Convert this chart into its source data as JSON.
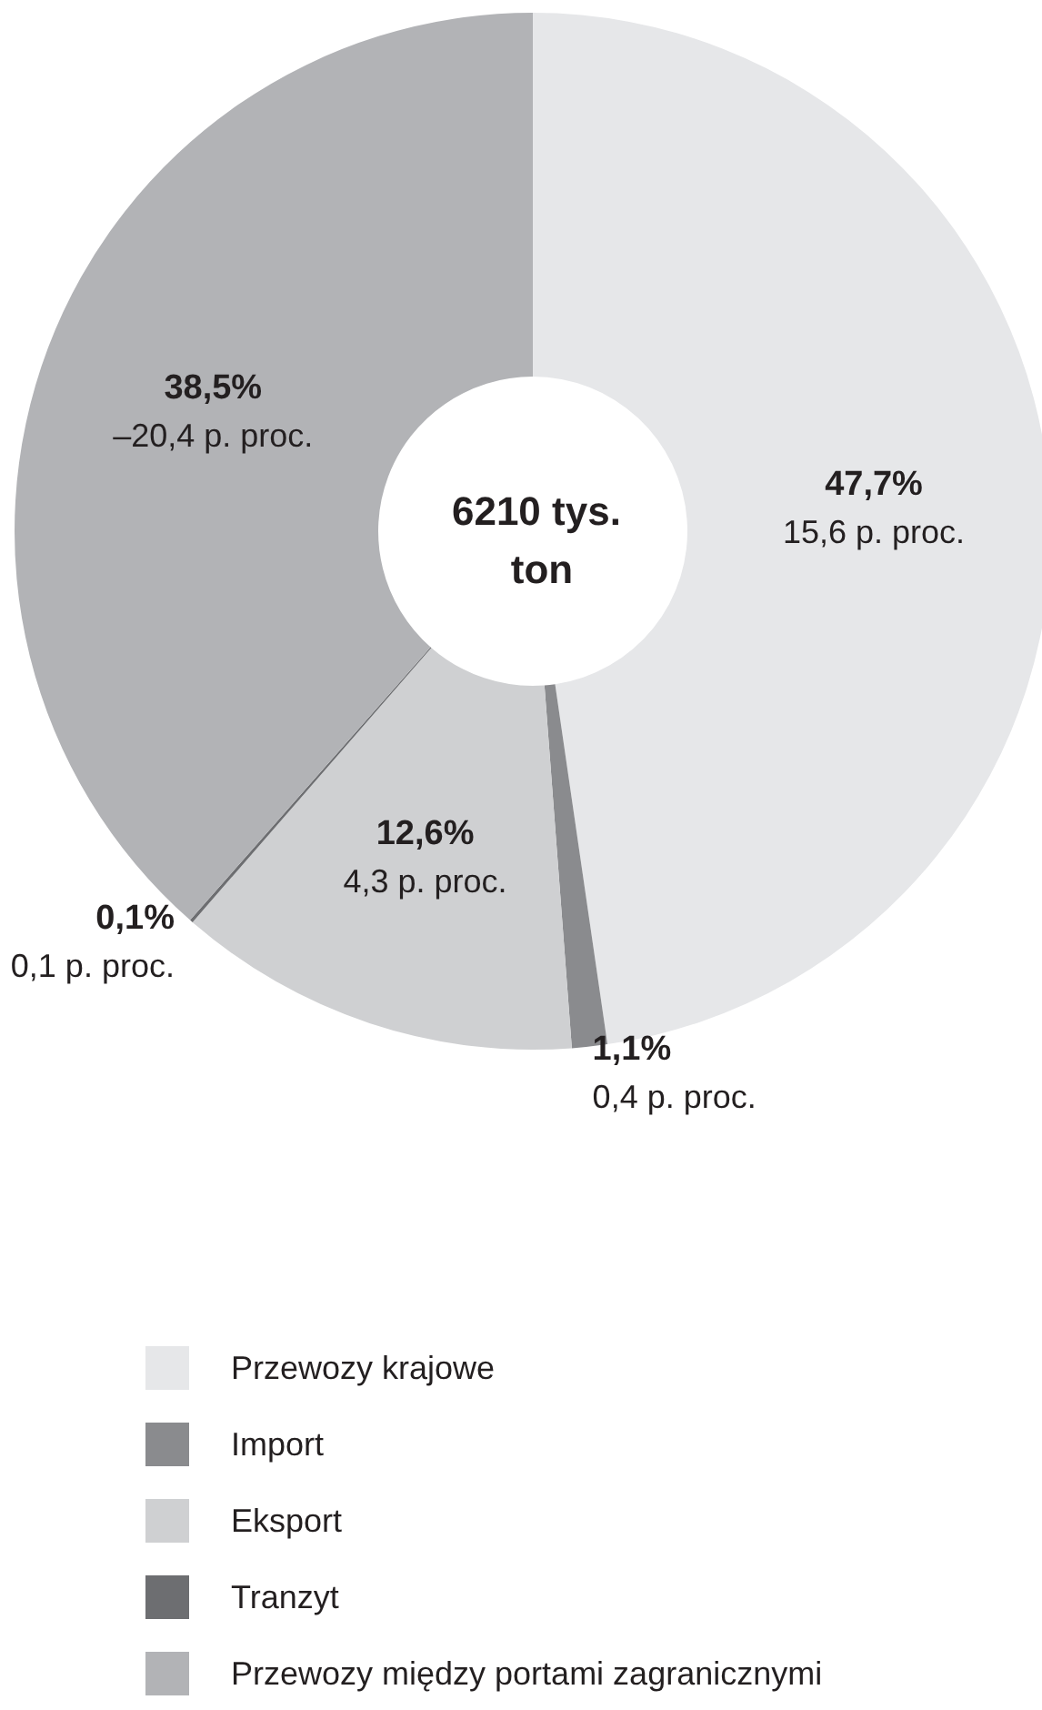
{
  "chart_data": {
    "type": "donut",
    "title": "6210 tys. ton",
    "categories": [
      "Przewozy krajowe",
      "Import",
      "Eksport",
      "Tranzyt",
      "Przewozy między portami zagranicznymi"
    ],
    "values": [
      47.7,
      1.1,
      12.6,
      0.1,
      38.5
    ],
    "colors": [
      "#e6e7e9",
      "#8a8b8e",
      "#cfd0d2",
      "#6d6e71",
      "#b2b3b6"
    ],
    "value_labels": [
      "47,7%\n15,6 p. proc.",
      "1,1%\n0,4 p. proc.",
      "12,6%\n4,3 p. proc.",
      "0,1%\n0,1 p. proc.",
      "38,5%\n–20,4 p. proc."
    ],
    "legend": "bottom left"
  }
}
